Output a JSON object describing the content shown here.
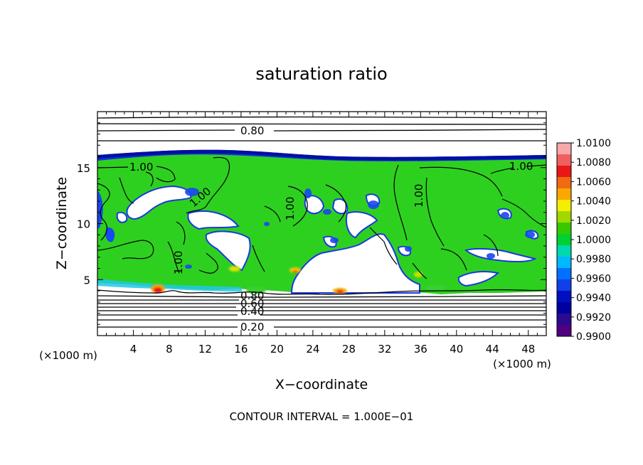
{
  "chart_data": {
    "type": "heatmap",
    "title": "saturation ratio",
    "xlabel": "X−coordinate",
    "ylabel": "Z−coordinate",
    "x_unit_label": "(×1000 m)",
    "y_unit_label": "(×1000 m)",
    "footer": "CONTOUR INTERVAL = 1.000E−01",
    "xlim": [
      0,
      50
    ],
    "ylim": [
      0,
      20
    ],
    "x_ticks": [
      4,
      8,
      12,
      16,
      20,
      24,
      28,
      32,
      36,
      40,
      44,
      48
    ],
    "y_ticks": [
      5,
      10,
      15
    ],
    "colorbar": {
      "labels": [
        "1.0100",
        "1.0080",
        "1.0060",
        "1.0040",
        "1.0020",
        "1.0000",
        "0.9980",
        "0.9960",
        "0.9940",
        "0.9920",
        "0.9900"
      ],
      "colors": [
        "#f7a8a8",
        "#f06060",
        "#e81818",
        "#f06a10",
        "#f8a800",
        "#f4ee00",
        "#a0d800",
        "#38c800",
        "#00d030",
        "#00d8b0",
        "#00b8ff",
        "#0070ff",
        "#1040e8",
        "#0010c0",
        "#0000a0",
        "#2a0a90",
        "#500080"
      ]
    },
    "contour_labels": [
      "0.80",
      "1.00",
      "1.00",
      "1.00",
      "1.00",
      "1.00",
      "1.00",
      "0.80",
      "0.60",
      "0.40",
      "0.20"
    ],
    "colors": {
      "domain_fill": "#2ed020",
      "cloud_free": "#ffffff",
      "edge_blue": "#1030e0"
    }
  }
}
